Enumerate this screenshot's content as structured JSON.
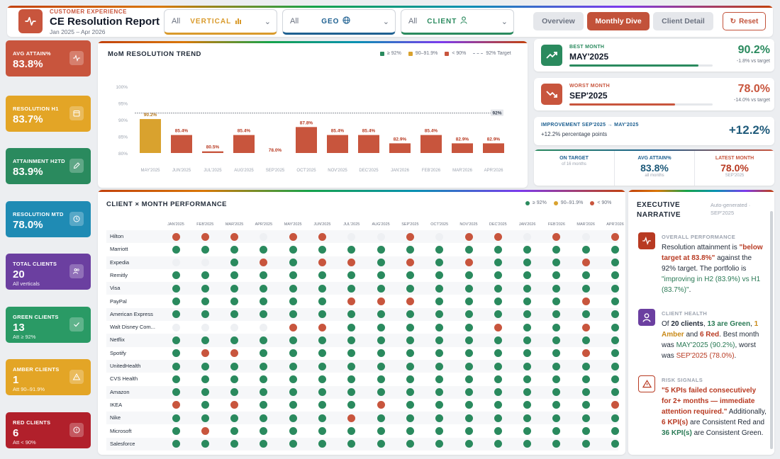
{
  "header": {
    "eyebrow": "CUSTOMER EXPERIENCE",
    "title": "CE Resolution Report",
    "range": "Jan 2025 – Apr 2026",
    "filters": [
      {
        "value": "All",
        "label": "VERTICAL",
        "icon": "bar-chart-icon"
      },
      {
        "value": "All",
        "label": "GEO",
        "icon": "globe-icon"
      },
      {
        "value": "All",
        "label": "CLIENT",
        "icon": "user-icon"
      }
    ],
    "tabs": [
      {
        "label": "Overview",
        "active": false
      },
      {
        "label": "Monthly Dive",
        "active": true
      },
      {
        "label": "Client Detail",
        "active": false
      }
    ],
    "reset_label": "Reset"
  },
  "kpis": [
    {
      "label": "AVG ATTAIN%",
      "value": "83.8%",
      "sub": "",
      "color": "#c8553d",
      "icon": "pulse-icon"
    },
    {
      "label": "RESOLUTION H1",
      "value": "83.7%",
      "sub": "",
      "color": "#e3a526",
      "icon": "calendar-icon"
    },
    {
      "label": "ATTAINMENT H2TD",
      "value": "83.9%",
      "sub": "",
      "color": "#2a8a5e",
      "icon": "pencil-icon"
    },
    {
      "label": "RESOLUTION MTD",
      "value": "78.0%",
      "sub": "",
      "color": "#1f8bb4",
      "icon": "clock-icon"
    },
    {
      "label": "TOTAL CLIENTS",
      "value": "20",
      "sub": "All verticals",
      "color": "#6b3fa0",
      "icon": "users-icon"
    },
    {
      "label": "GREEN CLIENTS",
      "value": "13",
      "sub": "Att ≥ 92%",
      "color": "#2a9a65",
      "icon": "check-icon"
    },
    {
      "label": "AMBER CLIENTS",
      "value": "1",
      "sub": "Att 90–91.9%",
      "color": "#e3a526",
      "icon": "warning-icon"
    },
    {
      "label": "RED CLIENTS",
      "value": "6",
      "sub": "Att < 90%",
      "color": "#b1202b",
      "icon": "alert-icon"
    }
  ],
  "trend": {
    "title": "MoM RESOLUTION TREND",
    "legend": [
      "≥ 92%",
      "90–91.9%",
      "< 90%",
      "92% Target"
    ],
    "target_label": "92%"
  },
  "chart_data": {
    "type": "bar",
    "title": "MoM RESOLUTION TREND",
    "categories": [
      "MAY'2025",
      "JUN'2025",
      "JUL'2025",
      "AUG'2025",
      "SEP'2025",
      "OCT'2025",
      "NOV'2025",
      "DEC'2025",
      "JAN'2026",
      "FEB'2026",
      "MAR'2026",
      "APR'2026"
    ],
    "values": [
      90.2,
      85.4,
      80.5,
      85.4,
      78.0,
      87.8,
      85.4,
      85.4,
      82.9,
      85.4,
      82.9,
      82.9
    ],
    "value_labels": [
      "90.2%",
      "85.4%",
      "80.5%",
      "85.4%",
      "78.0%",
      "87.8%",
      "85.4%",
      "85.4%",
      "82.9%",
      "85.4%",
      "82.9%",
      "82.9%"
    ],
    "yticks": [
      "100%",
      "95%",
      "90%",
      "85%",
      "80%"
    ],
    "ylim": [
      78,
      100
    ],
    "target": 92,
    "colors": {
      "green": "#2a8a5e",
      "amber": "#d9a22e",
      "red": "#c8553d"
    }
  },
  "best": {
    "label": "BEST MONTH",
    "name": "MAY'2025",
    "value": "90.2%",
    "sub": "-1.8% vs target",
    "fill": 0.9
  },
  "worst": {
    "label": "WORST MONTH",
    "name": "SEP'2025",
    "value": "78.0%",
    "sub": "-14.0% vs target",
    "fill": 0.74
  },
  "improvement": {
    "label": "IMPROVEMENT SEP'2025 → MAY'2025",
    "sub": "+12.2% percentage points",
    "value": "+12.2%"
  },
  "stats": [
    {
      "label": "ON TARGET",
      "value": "",
      "sub": "of 16 months"
    },
    {
      "label": "AVG ATTAIN%",
      "value": "83.8%",
      "sub": "all months"
    },
    {
      "label": "LATEST MONTH",
      "value": "78.0%",
      "sub": "SEP'2025"
    }
  ],
  "matrix": {
    "title": "CLIENT × MONTH PERFORMANCE",
    "legend": [
      "≥ 92%",
      "90–91.9%",
      "< 90%"
    ],
    "months": [
      "JAN'2025",
      "FEB'2025",
      "MAR'2025",
      "APR'2025",
      "MAY'2025",
      "JUN'2025",
      "JUL'2025",
      "AUG'2025",
      "SEP'2025",
      "OCT'2025",
      "NOV'2025",
      "DEC'2025",
      "JAN'2026",
      "FEB'2026",
      "MAR'2026",
      "APR'2026"
    ],
    "clients": [
      "Hilton",
      "Marriott",
      "Expedia",
      "Remitly",
      "Visa",
      "PayPal",
      "American Express",
      "Walt Disney Com...",
      "Netflix",
      "Spotify",
      "UnitedHealth",
      "CVS Health",
      "Amazon",
      "IKEA",
      "Nike",
      "Microsoft",
      "Salesforce"
    ],
    "cells": [
      "RRRERREERERRERER",
      "GGGGGGGGGGGGGGGG",
      "EEGRGRRGRGRGGGRG",
      "GGGGGGGGGGGGGGGG",
      "GGGGGGGGGGGGGGGG",
      "GGGGGGRRRGGGGGRG",
      "GGGGGGGGGGGGGGGG",
      "EEEERRGGGGGRGGRG",
      "GGGGGGGGGGGGGGGG",
      "GRRGGGGGGGGGGGRG",
      "GGGGGGGGGGGGGGGG",
      "GGGGGGGGGGGGGGGG",
      "GGGGGGGGGGGGGGGG",
      "RGRGGGGRGGGGGGGR",
      "GGGGGGRGGGGGGGGG",
      "GRGGGGGGGGGGGGGG",
      "GGGGGGGGGGGGGGGG"
    ]
  },
  "narrative": {
    "title": "EXECUTIVE NARRATIVE",
    "meta": "Auto-generated · SEP'2025",
    "s1_head": "OVERALL PERFORMANCE",
    "s1_a": "Resolution attainment is ",
    "s1_b": "\"below target at 83.8%\"",
    "s1_c": " against the 92% target. The portfolio is ",
    "s1_d": "\"improving in H2 (83.9%) vs H1 (83.7%)\"",
    "s1_e": ".",
    "s2_head": "CLIENT HEALTH",
    "s2_a": "Of ",
    "s2_b": "20 clients",
    "s2_c": ", ",
    "s2_d": "13 are Green",
    "s2_e": ", ",
    "s2_f": "1 Amber",
    "s2_g": " and ",
    "s2_h": "6 Red",
    "s2_i": ". Best month was ",
    "s2_j": "MAY'2025 (90.2%)",
    "s2_k": ", worst was ",
    "s2_l": "SEP'2025 (78.0%)",
    "s2_m": ".",
    "s3_head": "RISK SIGNALS",
    "s3_a": "\"5 KPIs failed consecutively for 2+ months — immediate attention required.\"",
    "s3_b": " Additionally, ",
    "s3_c": "6 KPI(s)",
    "s3_d": " are Consistent Red and ",
    "s3_e": "36 KPI(s)",
    "s3_f": " are Consistent Green."
  }
}
